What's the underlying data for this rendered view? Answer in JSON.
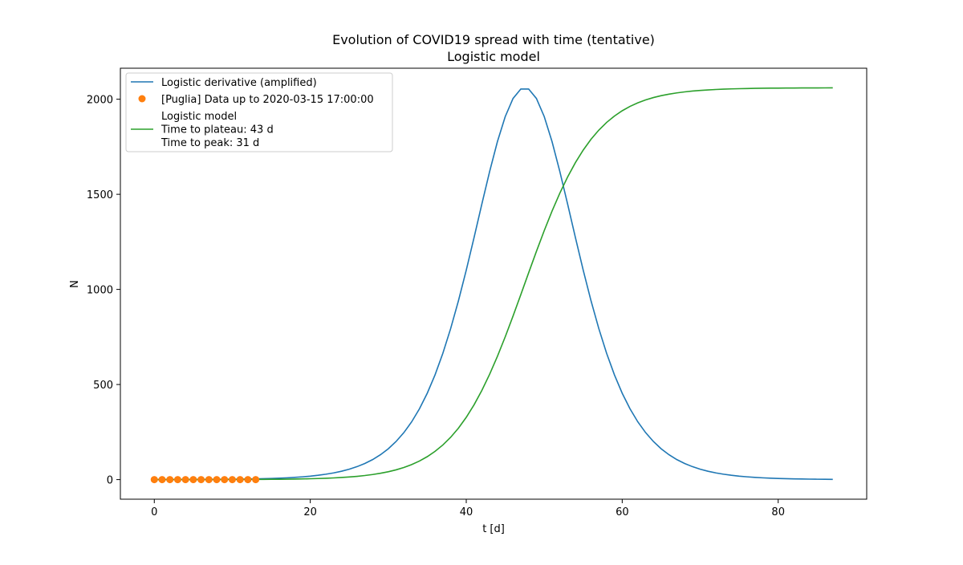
{
  "chart_data": {
    "type": "line",
    "title": "Evolution of COVID19 spread with time (tentative)",
    "subtitle": "Logistic model",
    "xlabel": "t [d]",
    "ylabel": "N",
    "xlim": [
      -4.35,
      91.35
    ],
    "ylim": [
      -103,
      2163
    ],
    "xticks": [
      0,
      20,
      40,
      60,
      80
    ],
    "yticks": [
      0,
      500,
      1000,
      1500,
      2000
    ],
    "grid": false,
    "legend_position": "upper-left",
    "logistic_params": {
      "a": 4.5,
      "b": 47.5,
      "c": 2060,
      "derivative_scale": 18.0,
      "t_start": 0,
      "t_end": 87
    },
    "series": [
      {
        "name": "Logistic derivative (amplified)",
        "kind": "line",
        "color": "#1f77b4",
        "legend": [
          "Logistic derivative (amplified)"
        ]
      },
      {
        "name": "[Puglia] Data up to 2020-03-15 17:00:00",
        "kind": "scatter",
        "color": "#ff7f0e",
        "legend": [
          "[Puglia] Data up to 2020-03-15 17:00:00"
        ],
        "x": [
          0,
          1,
          2,
          3,
          4,
          5,
          6,
          7,
          8,
          9,
          10,
          11,
          12,
          13
        ],
        "y": [
          0,
          0,
          0,
          0,
          0,
          0,
          0,
          0,
          0,
          0,
          0,
          0,
          0,
          0
        ]
      },
      {
        "name": "Logistic model",
        "kind": "line",
        "color": "#2ca02c",
        "legend": [
          "Logistic model",
          "Time to plateau: 43 d",
          "Time to peak: 31 d"
        ]
      }
    ]
  }
}
